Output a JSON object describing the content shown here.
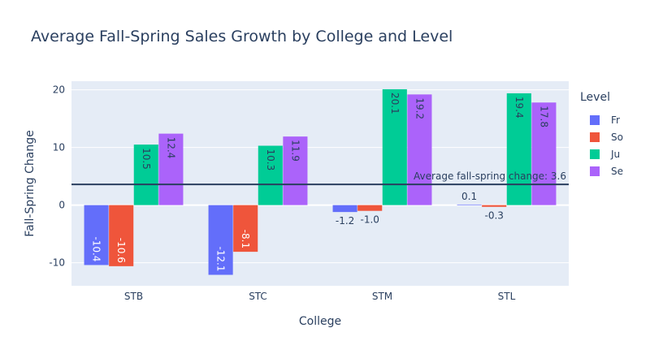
{
  "chart_data": {
    "type": "bar",
    "title": "Average Fall-Spring Sales Growth by College and Level",
    "xlabel": "College",
    "ylabel": "Fall-Spring Change",
    "categories": [
      "STB",
      "STC",
      "STM",
      "STL"
    ],
    "ylim": [
      -14,
      21.5
    ],
    "yticks": [
      -10,
      0,
      10,
      20
    ],
    "grid": true,
    "legend": {
      "title": "Level",
      "placement": "right"
    },
    "series": [
      {
        "name": "Fr",
        "color": "#636efa",
        "values": [
          -10.4,
          -12.1,
          -1.2,
          0.1
        ]
      },
      {
        "name": "So",
        "color": "#ef553b",
        "values": [
          -10.6,
          -8.1,
          -1.0,
          -0.3
        ]
      },
      {
        "name": "Ju",
        "color": "#00cc96",
        "values": [
          10.5,
          10.3,
          20.1,
          19.4
        ]
      },
      {
        "name": "Se",
        "color": "#ab63fa",
        "values": [
          12.4,
          11.9,
          19.2,
          17.8
        ]
      }
    ],
    "reference_line": {
      "value": 3.6,
      "label": "Average fall-spring change: 3.6"
    }
  }
}
